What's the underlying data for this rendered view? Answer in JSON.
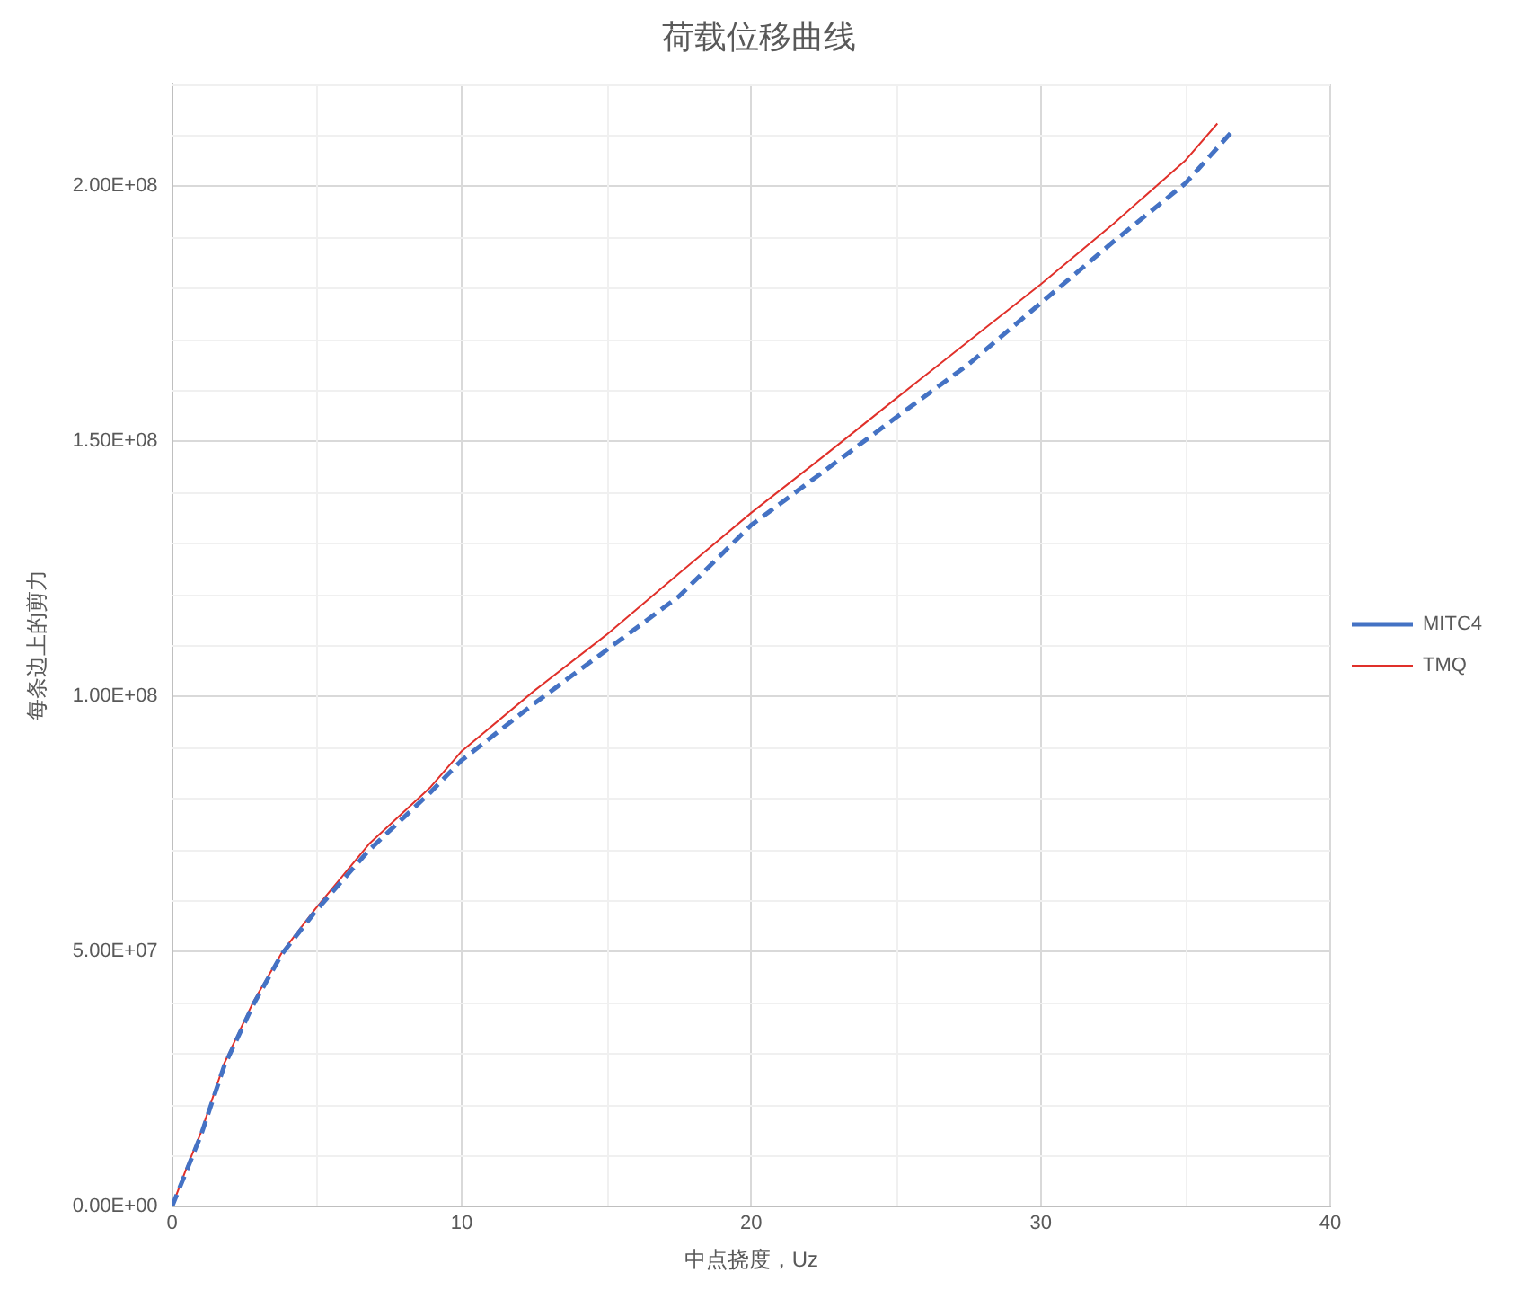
{
  "chart_data": {
    "type": "line",
    "title": "荷载位移曲线",
    "xlabel": "中点挠度，Uz",
    "ylabel": "每条边上的剪力",
    "xlim": [
      0,
      40
    ],
    "xticks": [
      0,
      10,
      20,
      30,
      40
    ],
    "ylim": [
      0,
      220000000
    ],
    "yticks": [
      {
        "value": 0,
        "label": "0.00E+00"
      },
      {
        "value": 50000000,
        "label": "5.00E+07"
      },
      {
        "value": 100000000,
        "label": "1.00E+08"
      },
      {
        "value": 150000000,
        "label": "1.50E+08"
      },
      {
        "value": 200000000,
        "label": "2.00E+08"
      }
    ],
    "grid": true,
    "legend": "right",
    "marker": "none",
    "series": [
      {
        "name": "MITC4",
        "color": "#4472c4",
        "line_style": "dashed",
        "x": [
          0,
          0.5,
          1,
          1.8,
          2.8,
          3.8,
          4.95,
          6.8,
          8.9,
          10,
          12.5,
          15,
          17.5,
          20,
          22.5,
          25,
          27.5,
          30,
          32.5,
          35,
          36.6
        ],
        "values": [
          0,
          7000000,
          14000000,
          27500000,
          39500000,
          49500000,
          57800000,
          69800000,
          81000000,
          87400000,
          98500000,
          109000000,
          119500000,
          133500000,
          144000000,
          154600000,
          165000000,
          177000000,
          189000000,
          200500000,
          210600000
        ]
      },
      {
        "name": "TMQ",
        "color": "#e0302a",
        "line_style": "solid",
        "x": [
          0,
          0.5,
          1,
          1.8,
          2.8,
          3.8,
          4.95,
          6.8,
          8.9,
          10,
          12.5,
          15,
          17.5,
          20,
          22.5,
          25,
          27.5,
          30,
          32.5,
          35,
          36.1
        ],
        "values": [
          0,
          7500000,
          14500000,
          28000000,
          40000000,
          49800000,
          58300000,
          71000000,
          82000000,
          89200000,
          101000000,
          112000000,
          124000000,
          135900000,
          147000000,
          158300000,
          169500000,
          180700000,
          192500000,
          205000000,
          212200000
        ]
      }
    ]
  }
}
